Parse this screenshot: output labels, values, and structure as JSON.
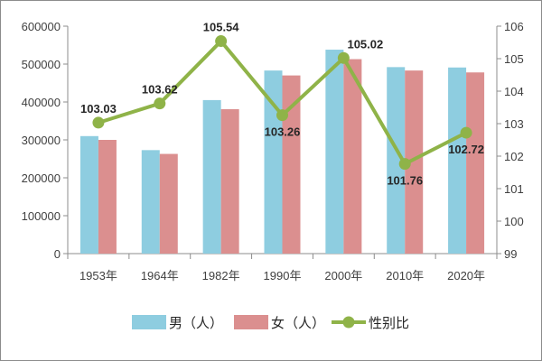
{
  "chart_data": {
    "type": "bar",
    "title": "",
    "xlabel": "",
    "ylabel": "",
    "y2label": "",
    "categories": [
      "1953年",
      "1964年",
      "1982年",
      "1990年",
      "2000年",
      "2010年",
      "2020年"
    ],
    "series": [
      {
        "name": "男（人）",
        "type": "bar",
        "axis": "left",
        "color": "#8ecde0",
        "values": [
          310000,
          273000,
          405000,
          483000,
          538000,
          492000,
          491000
        ]
      },
      {
        "name": "女（人）",
        "type": "bar",
        "axis": "left",
        "color": "#db8f8f",
        "values": [
          300000,
          263000,
          381000,
          470000,
          513000,
          483000,
          478000
        ]
      },
      {
        "name": "性别比",
        "type": "line",
        "axis": "right",
        "color": "#8fb348",
        "values": [
          103.03,
          103.62,
          105.54,
          103.26,
          105.02,
          101.76,
          102.72
        ]
      }
    ],
    "data_labels": [
      "103.03",
      "103.62",
      "105.54",
      "103.26",
      "105.02",
      "101.76",
      "102.72"
    ],
    "ylim": [
      0,
      600000
    ],
    "y_ticks": [
      "0",
      "100000",
      "200000",
      "300000",
      "400000",
      "500000",
      "600000"
    ],
    "y2lim": [
      99,
      106
    ],
    "y2_ticks": [
      "99",
      "100",
      "101",
      "102",
      "103",
      "104",
      "105",
      "106"
    ],
    "grid": false,
    "legend": "bottom"
  }
}
